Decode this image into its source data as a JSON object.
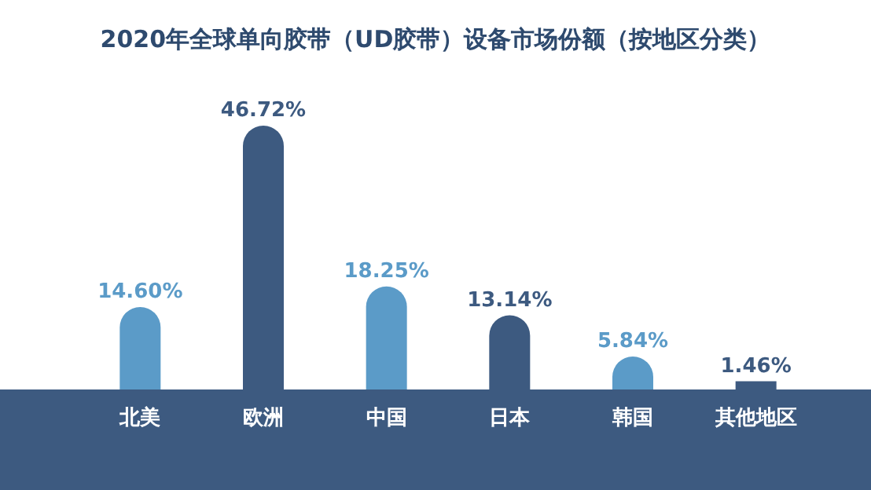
{
  "chart_data": {
    "type": "bar",
    "title": "2020年全球单向胶带（UD胶带）设备市场份额（按地区分类）",
    "categories": [
      "北美",
      "欧洲",
      "中国",
      "日本",
      "韩国",
      "其他地区"
    ],
    "values": [
      14.6,
      46.72,
      18.25,
      13.14,
      5.84,
      1.46
    ],
    "value_labels": [
      "14.60%",
      "46.72%",
      "18.25%",
      "13.14%",
      "5.84%",
      "1.46%"
    ],
    "colors": [
      "#5b9bc8",
      "#3d5a80",
      "#5b9bc8",
      "#3d5a80",
      "#5b9bc8",
      "#3d5a80"
    ]
  }
}
